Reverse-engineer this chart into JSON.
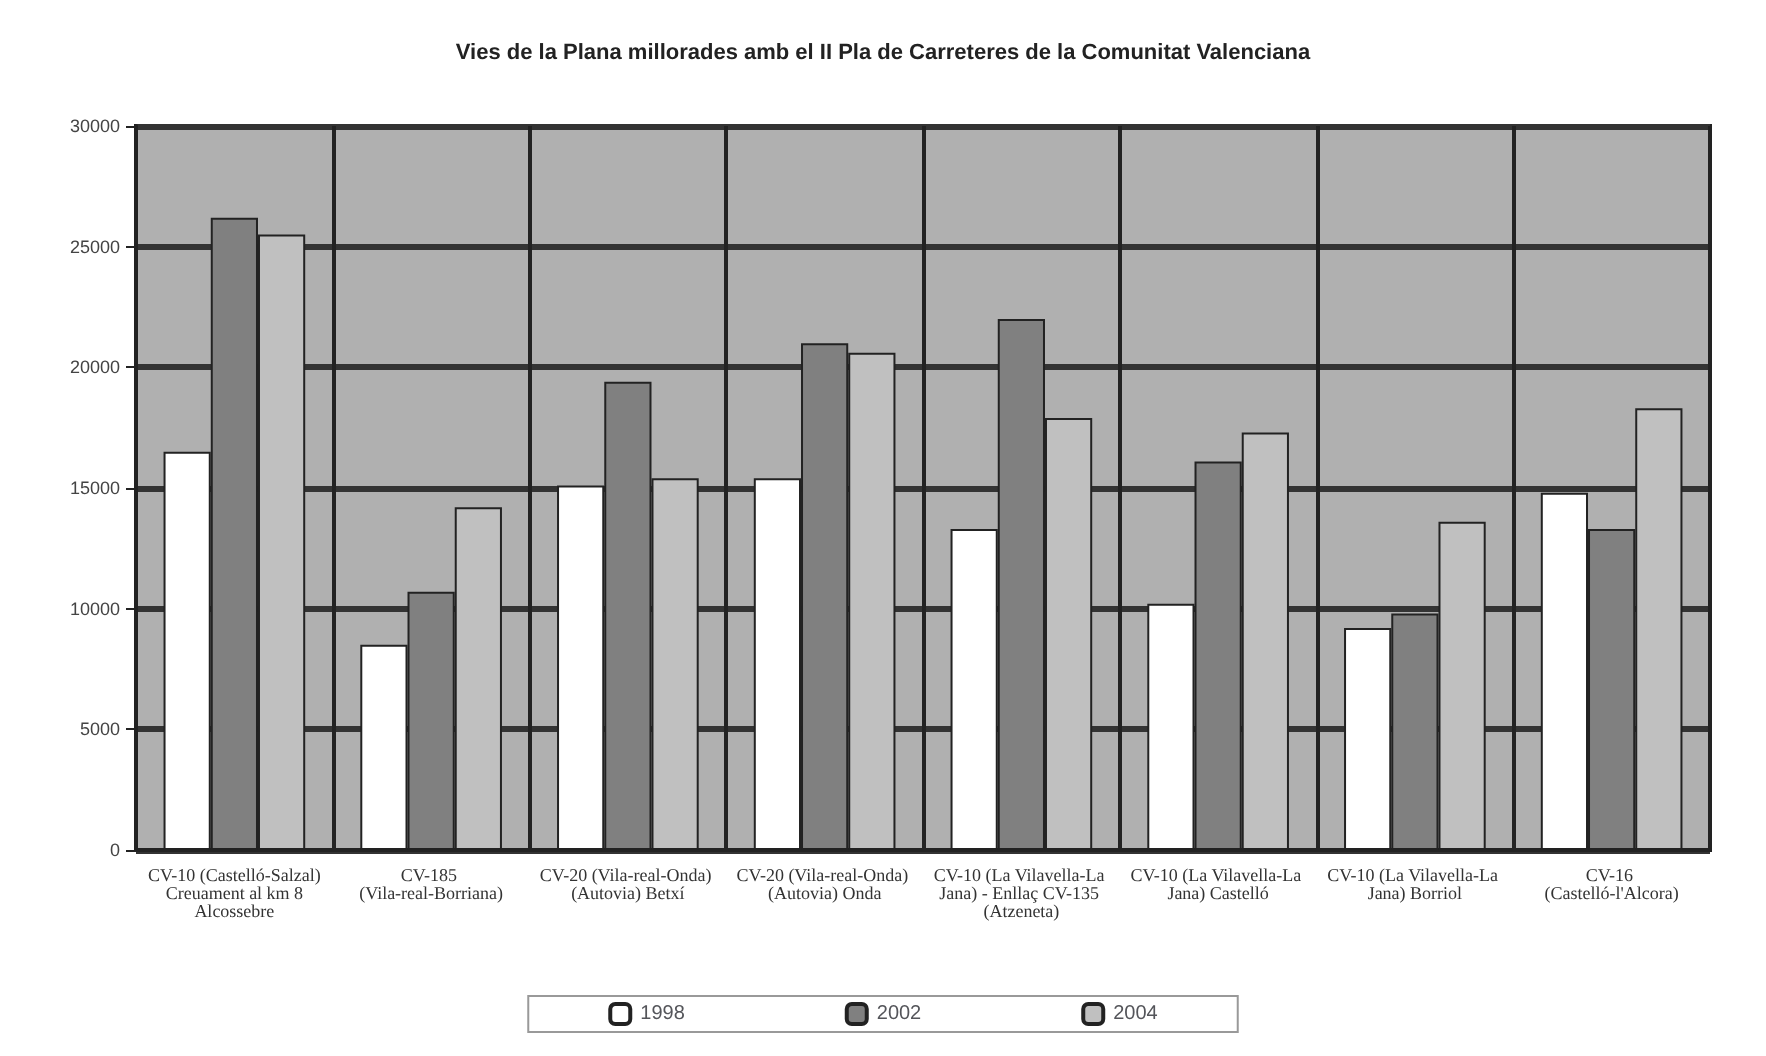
{
  "chart_data": {
    "type": "bar",
    "title": "Vies de la Plana millorades amb el II Pla de Carreteres de la Comunitat Valenciana",
    "categories": [
      "CV-10 (Castelló-Salzal) Creuament al km 8 Alcossebre",
      "CV-185 (Vila-real-Borriana)",
      "CV-20 (Vila-real-Onda) (Autovia) Betxí",
      "CV-20 (Vila-real-Onda) (Autovia) Onda",
      "CV-10 (La Vilavella-La Jana) - Enllaç CV-135 (Atzeneta)",
      "CV-10 (La Vilavella-La Jana) Castelló",
      "CV-10 (La Vilavella-La Jana) Borriol",
      "CV-16 (Castelló-l'Alcora)"
    ],
    "series": [
      {
        "name": "1998",
        "color": "#ffffff",
        "values": [
          16500,
          8500,
          15100,
          15400,
          13300,
          10200,
          9200,
          14800
        ]
      },
      {
        "name": "2002",
        "color": "#808080",
        "values": [
          26200,
          10700,
          19400,
          21000,
          22000,
          16100,
          9800,
          13300
        ]
      },
      {
        "name": "2004",
        "color": "#c0c0c0",
        "values": [
          25500,
          14200,
          15400,
          20600,
          17900,
          17300,
          13600,
          18300
        ]
      }
    ],
    "ylim": [
      0,
      30000
    ],
    "yticks": [
      0,
      5000,
      10000,
      15000,
      20000,
      25000,
      30000
    ],
    "grid": true,
    "legend": "bottom"
  }
}
